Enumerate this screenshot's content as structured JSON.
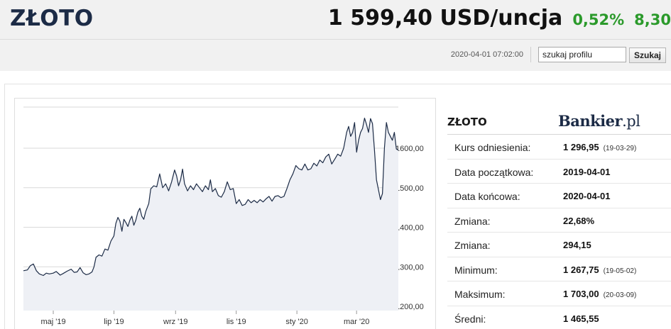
{
  "header": {
    "title": "ZŁOTO",
    "price": "1 599,40 USD/uncja",
    "change_pct": "0,52%",
    "change_abs": "8,30",
    "timestamp": "2020-04-01 07:02:00",
    "search_value": "szukaj profilu",
    "search_button": "Szukaj"
  },
  "colors": {
    "title": "#1c2b46",
    "positive": "#2b9a2b",
    "line": "#1c2b46",
    "area_fill": "#eef0f5"
  },
  "panel": {
    "title": "ZŁOTO",
    "logo_main": "Bankier",
    "logo_suffix": ".pl",
    "rows": [
      {
        "label": "Kurs odniesienia:",
        "value": "1 296,95",
        "date": "(19-03-29)"
      },
      {
        "label": "Data początkowa:",
        "value": "2019-04-01",
        "date": ""
      },
      {
        "label": "Data końcowa:",
        "value": "2020-04-01",
        "date": ""
      },
      {
        "label": "Zmiana:",
        "value": "22,68%",
        "date": ""
      },
      {
        "label": "Zmiana:",
        "value": "294,15",
        "date": ""
      },
      {
        "label": "Minimum:",
        "value": "1 267,75",
        "date": "(19-05-02)"
      },
      {
        "label": "Maksimum:",
        "value": "1 703,00",
        "date": "(20-03-09)"
      },
      {
        "label": "Średni:",
        "value": "1 465,55",
        "date": ""
      }
    ]
  },
  "chart_data": {
    "type": "area",
    "title": "",
    "xlabel": "",
    "ylabel": "",
    "x_ticks": [
      "maj '19",
      "lip '19",
      "wrz '19",
      "lis '19",
      "sty '20",
      "mar '20"
    ],
    "y_ticks": [
      "1200,00",
      "1300,00",
      "1400,00",
      "1500,00",
      "1600,00"
    ],
    "y_tick_values": [
      1200,
      1300,
      1400,
      1500,
      1600
    ],
    "ylim": [
      1190,
      1700
    ],
    "xlim": [
      0,
      365
    ],
    "x_tick_positions": [
      30,
      91,
      153,
      214,
      275,
      335
    ],
    "grid": true,
    "series": [
      {
        "values": [
          [
            0,
            1290
          ],
          [
            4,
            1292
          ],
          [
            7,
            1303
          ],
          [
            10,
            1307
          ],
          [
            13,
            1290
          ],
          [
            16,
            1282
          ],
          [
            20,
            1278
          ],
          [
            23,
            1284
          ],
          [
            26,
            1282
          ],
          [
            30,
            1284
          ],
          [
            33,
            1288
          ],
          [
            37,
            1279
          ],
          [
            40,
            1283
          ],
          [
            44,
            1289
          ],
          [
            48,
            1294
          ],
          [
            51,
            1286
          ],
          [
            54,
            1287
          ],
          [
            57,
            1298
          ],
          [
            60,
            1285
          ],
          [
            63,
            1280
          ],
          [
            66,
            1282
          ],
          [
            69,
            1287
          ],
          [
            71,
            1300
          ],
          [
            73,
            1324
          ],
          [
            76,
            1330
          ],
          [
            79,
            1327
          ],
          [
            82,
            1345
          ],
          [
            85,
            1342
          ],
          [
            88,
            1365
          ],
          [
            91,
            1378
          ],
          [
            93,
            1410
          ],
          [
            95,
            1425
          ],
          [
            97,
            1415
          ],
          [
            99,
            1390
          ],
          [
            101,
            1420
          ],
          [
            103,
            1412
          ],
          [
            105,
            1402
          ],
          [
            107,
            1418
          ],
          [
            109,
            1428
          ],
          [
            111,
            1405
          ],
          [
            113,
            1418
          ],
          [
            115,
            1438
          ],
          [
            117,
            1448
          ],
          [
            119,
            1428
          ],
          [
            121,
            1420
          ],
          [
            123,
            1440
          ],
          [
            126,
            1460
          ],
          [
            128,
            1497
          ],
          [
            131,
            1505
          ],
          [
            134,
            1502
          ],
          [
            137,
            1535
          ],
          [
            140,
            1500
          ],
          [
            143,
            1510
          ],
          [
            146,
            1492
          ],
          [
            149,
            1515
          ],
          [
            152,
            1545
          ],
          [
            154,
            1530
          ],
          [
            156,
            1505
          ],
          [
            158,
            1520
          ],
          [
            160,
            1547
          ],
          [
            162,
            1510
          ],
          [
            165,
            1492
          ],
          [
            168,
            1505
          ],
          [
            171,
            1495
          ],
          [
            174,
            1510
          ],
          [
            177,
            1500
          ],
          [
            180,
            1490
          ],
          [
            183,
            1505
          ],
          [
            186,
            1495
          ],
          [
            188,
            1520
          ],
          [
            190,
            1490
          ],
          [
            193,
            1498
          ],
          [
            196,
            1480
          ],
          [
            199,
            1476
          ],
          [
            202,
            1490
          ],
          [
            205,
            1515
          ],
          [
            208,
            1495
          ],
          [
            211,
            1498
          ],
          [
            214,
            1460
          ],
          [
            217,
            1470
          ],
          [
            220,
            1455
          ],
          [
            223,
            1458
          ],
          [
            226,
            1470
          ],
          [
            229,
            1462
          ],
          [
            232,
            1468
          ],
          [
            235,
            1462
          ],
          [
            238,
            1470
          ],
          [
            241,
            1464
          ],
          [
            244,
            1472
          ],
          [
            247,
            1478
          ],
          [
            250,
            1466
          ],
          [
            253,
            1478
          ],
          [
            256,
            1480
          ],
          [
            259,
            1475
          ],
          [
            262,
            1478
          ],
          [
            265,
            1498
          ],
          [
            268,
            1520
          ],
          [
            271,
            1535
          ],
          [
            274,
            1556
          ],
          [
            277,
            1548
          ],
          [
            280,
            1545
          ],
          [
            283,
            1560
          ],
          [
            286,
            1545
          ],
          [
            289,
            1548
          ],
          [
            292,
            1562
          ],
          [
            295,
            1555
          ],
          [
            298,
            1570
          ],
          [
            301,
            1563
          ],
          [
            304,
            1578
          ],
          [
            307,
            1585
          ],
          [
            310,
            1560
          ],
          [
            313,
            1572
          ],
          [
            316,
            1585
          ],
          [
            319,
            1580
          ],
          [
            322,
            1600
          ],
          [
            325,
            1640
          ],
          [
            327,
            1655
          ],
          [
            329,
            1630
          ],
          [
            331,
            1640
          ],
          [
            333,
            1665
          ],
          [
            335,
            1590
          ],
          [
            337,
            1620
          ],
          [
            339,
            1640
          ],
          [
            341,
            1650
          ],
          [
            343,
            1676
          ],
          [
            345,
            1660
          ],
          [
            347,
            1640
          ],
          [
            349,
            1675
          ],
          [
            351,
            1662
          ],
          [
            353,
            1595
          ],
          [
            355,
            1520
          ],
          [
            357,
            1495
          ],
          [
            359,
            1470
          ],
          [
            361,
            1485
          ],
          [
            363,
            1600
          ],
          [
            365,
            1665
          ],
          [
            367,
            1640
          ],
          [
            369,
            1630
          ],
          [
            371,
            1620
          ],
          [
            373,
            1640
          ],
          [
            375,
            1598
          ],
          [
            377,
            1595
          ]
        ]
      }
    ]
  }
}
